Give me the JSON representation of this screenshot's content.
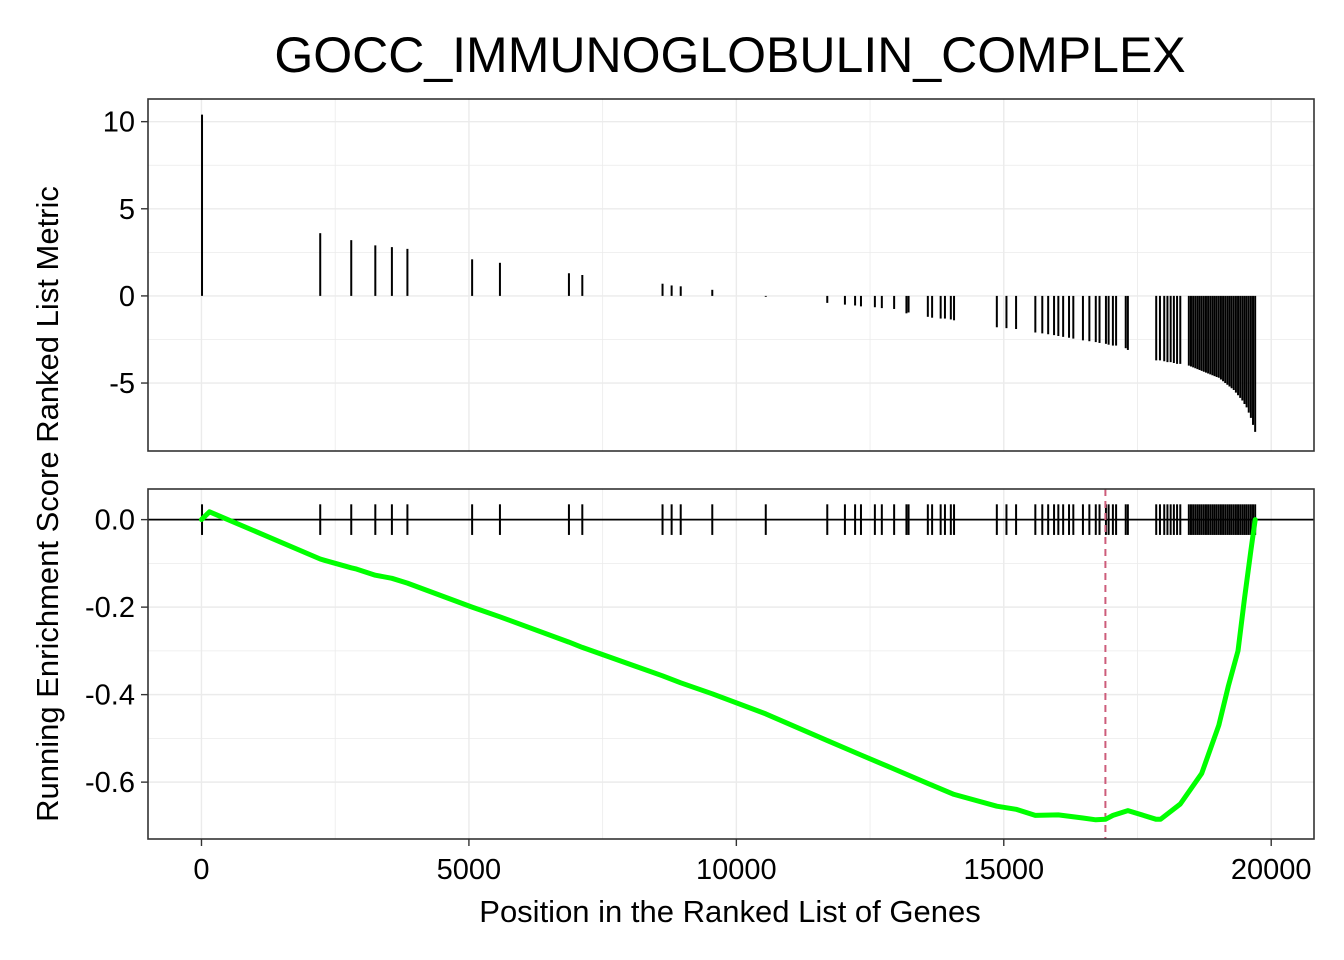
{
  "chart_data": {
    "type": "line",
    "title": "GOCC_IMMUNOGLOBULIN_COMPLEX",
    "xlabel": "Position in the Ranked List of Genes",
    "ylabel": "Running Enrichment Score Ranked List Metric",
    "xlim": [
      -1000,
      20800
    ],
    "xticks": [
      0,
      5000,
      10000,
      15000,
      20000
    ],
    "grid": true,
    "colors": {
      "running_score": "#00ff00",
      "max_deviation_line": "#cd5c7a",
      "hits": "#000000",
      "grid": "#ebebeb"
    },
    "panels": [
      {
        "name": "ranked_list_metric",
        "ylim": [
          -8.9,
          11.3
        ],
        "yticks": [
          10,
          5,
          0,
          -5
        ],
        "hits": [
          {
            "x": 10,
            "y": 10.4
          },
          {
            "x": 2220,
            "y": 3.6
          },
          {
            "x": 2800,
            "y": 3.2
          },
          {
            "x": 3250,
            "y": 2.9
          },
          {
            "x": 3560,
            "y": 2.8
          },
          {
            "x": 3850,
            "y": 2.7
          },
          {
            "x": 5060,
            "y": 2.1
          },
          {
            "x": 5580,
            "y": 1.9
          },
          {
            "x": 6870,
            "y": 1.3
          },
          {
            "x": 7120,
            "y": 1.2
          },
          {
            "x": 8620,
            "y": 0.7
          },
          {
            "x": 8790,
            "y": 0.6
          },
          {
            "x": 8960,
            "y": 0.55
          },
          {
            "x": 9550,
            "y": 0.35
          },
          {
            "x": 10550,
            "y": -0.05
          },
          {
            "x": 11700,
            "y": -0.4
          },
          {
            "x": 12030,
            "y": -0.5
          },
          {
            "x": 12220,
            "y": -0.55
          },
          {
            "x": 12330,
            "y": -0.6
          },
          {
            "x": 12590,
            "y": -0.65
          },
          {
            "x": 12720,
            "y": -0.7
          },
          {
            "x": 12950,
            "y": -0.75
          },
          {
            "x": 13180,
            "y": -1.0
          },
          {
            "x": 13220,
            "y": -0.95
          },
          {
            "x": 13580,
            "y": -1.2
          },
          {
            "x": 13660,
            "y": -1.25
          },
          {
            "x": 13820,
            "y": -1.3
          },
          {
            "x": 13900,
            "y": -1.3
          },
          {
            "x": 14010,
            "y": -1.35
          },
          {
            "x": 14070,
            "y": -1.4
          },
          {
            "x": 14870,
            "y": -1.8
          },
          {
            "x": 15050,
            "y": -1.85
          },
          {
            "x": 15230,
            "y": -1.9
          },
          {
            "x": 15590,
            "y": -2.1
          },
          {
            "x": 15720,
            "y": -2.15
          },
          {
            "x": 15830,
            "y": -2.2
          },
          {
            "x": 15940,
            "y": -2.25
          },
          {
            "x": 16020,
            "y": -2.3
          },
          {
            "x": 16110,
            "y": -2.35
          },
          {
            "x": 16220,
            "y": -2.4
          },
          {
            "x": 16300,
            "y": -2.45
          },
          {
            "x": 16480,
            "y": -2.55
          },
          {
            "x": 16600,
            "y": -2.6
          },
          {
            "x": 16720,
            "y": -2.65
          },
          {
            "x": 16790,
            "y": -2.7
          },
          {
            "x": 16910,
            "y": -2.75
          },
          {
            "x": 16960,
            "y": -2.8
          },
          {
            "x": 17040,
            "y": -2.85
          },
          {
            "x": 17100,
            "y": -2.85
          },
          {
            "x": 17280,
            "y": -3.0
          },
          {
            "x": 17320,
            "y": -3.1
          },
          {
            "x": 17850,
            "y": -3.7
          },
          {
            "x": 17920,
            "y": -3.7
          },
          {
            "x": 18000,
            "y": -3.75
          },
          {
            "x": 18060,
            "y": -3.8
          },
          {
            "x": 18120,
            "y": -3.8
          },
          {
            "x": 18180,
            "y": -3.85
          },
          {
            "x": 18240,
            "y": -3.9
          },
          {
            "x": 18300,
            "y": -3.9
          },
          {
            "x": 18460,
            "y": -4.0
          },
          {
            "x": 18500,
            "y": -4.05
          },
          {
            "x": 18540,
            "y": -4.1
          },
          {
            "x": 18580,
            "y": -4.15
          },
          {
            "x": 18620,
            "y": -4.2
          },
          {
            "x": 18660,
            "y": -4.25
          },
          {
            "x": 18700,
            "y": -4.3
          },
          {
            "x": 18740,
            "y": -4.35
          },
          {
            "x": 18780,
            "y": -4.4
          },
          {
            "x": 18820,
            "y": -4.45
          },
          {
            "x": 18860,
            "y": -4.5
          },
          {
            "x": 18900,
            "y": -4.55
          },
          {
            "x": 18940,
            "y": -4.6
          },
          {
            "x": 18980,
            "y": -4.65
          },
          {
            "x": 19020,
            "y": -4.7
          },
          {
            "x": 19060,
            "y": -4.8
          },
          {
            "x": 19100,
            "y": -4.9
          },
          {
            "x": 19140,
            "y": -5.0
          },
          {
            "x": 19180,
            "y": -5.1
          },
          {
            "x": 19220,
            "y": -5.2
          },
          {
            "x": 19260,
            "y": -5.3
          },
          {
            "x": 19300,
            "y": -5.4
          },
          {
            "x": 19340,
            "y": -5.55
          },
          {
            "x": 19380,
            "y": -5.7
          },
          {
            "x": 19420,
            "y": -5.85
          },
          {
            "x": 19460,
            "y": -6.0
          },
          {
            "x": 19500,
            "y": -6.2
          },
          {
            "x": 19540,
            "y": -6.4
          },
          {
            "x": 19580,
            "y": -6.7
          },
          {
            "x": 19620,
            "y": -7.0
          },
          {
            "x": 19660,
            "y": -7.4
          },
          {
            "x": 19700,
            "y": -7.8
          }
        ]
      },
      {
        "name": "running_enrichment_score",
        "ylim": [
          -0.73,
          0.07
        ],
        "yticks": [
          0.0,
          -0.2,
          -0.4,
          -0.6
        ],
        "ytick_labels": [
          "0.0",
          "-0.2",
          "-0.4",
          "-0.6"
        ],
        "max_deviation_x": 16900,
        "running_score": {
          "x": [
            0,
            150,
            2220,
            2300,
            2800,
            2900,
            3250,
            3560,
            3850,
            5060,
            5580,
            6870,
            7120,
            8620,
            8960,
            9550,
            10550,
            11700,
            12330,
            12950,
            13580,
            14070,
            14870,
            15230,
            15590,
            16020,
            16480,
            16720,
            16900,
            17040,
            17320,
            17850,
            17930,
            18300,
            18700,
            19020,
            19200,
            19380,
            19500,
            19620,
            19700
          ],
          "y": [
            0.0,
            0.018,
            -0.09,
            -0.093,
            -0.11,
            -0.113,
            -0.127,
            -0.134,
            -0.145,
            -0.2,
            -0.222,
            -0.28,
            -0.292,
            -0.357,
            -0.373,
            -0.398,
            -0.444,
            -0.505,
            -0.538,
            -0.57,
            -0.603,
            -0.628,
            -0.655,
            -0.662,
            -0.676,
            -0.675,
            -0.682,
            -0.686,
            -0.685,
            -0.676,
            -0.665,
            -0.685,
            -0.685,
            -0.65,
            -0.58,
            -0.47,
            -0.38,
            -0.3,
            -0.18,
            -0.07,
            0.0
          ]
        }
      }
    ]
  }
}
